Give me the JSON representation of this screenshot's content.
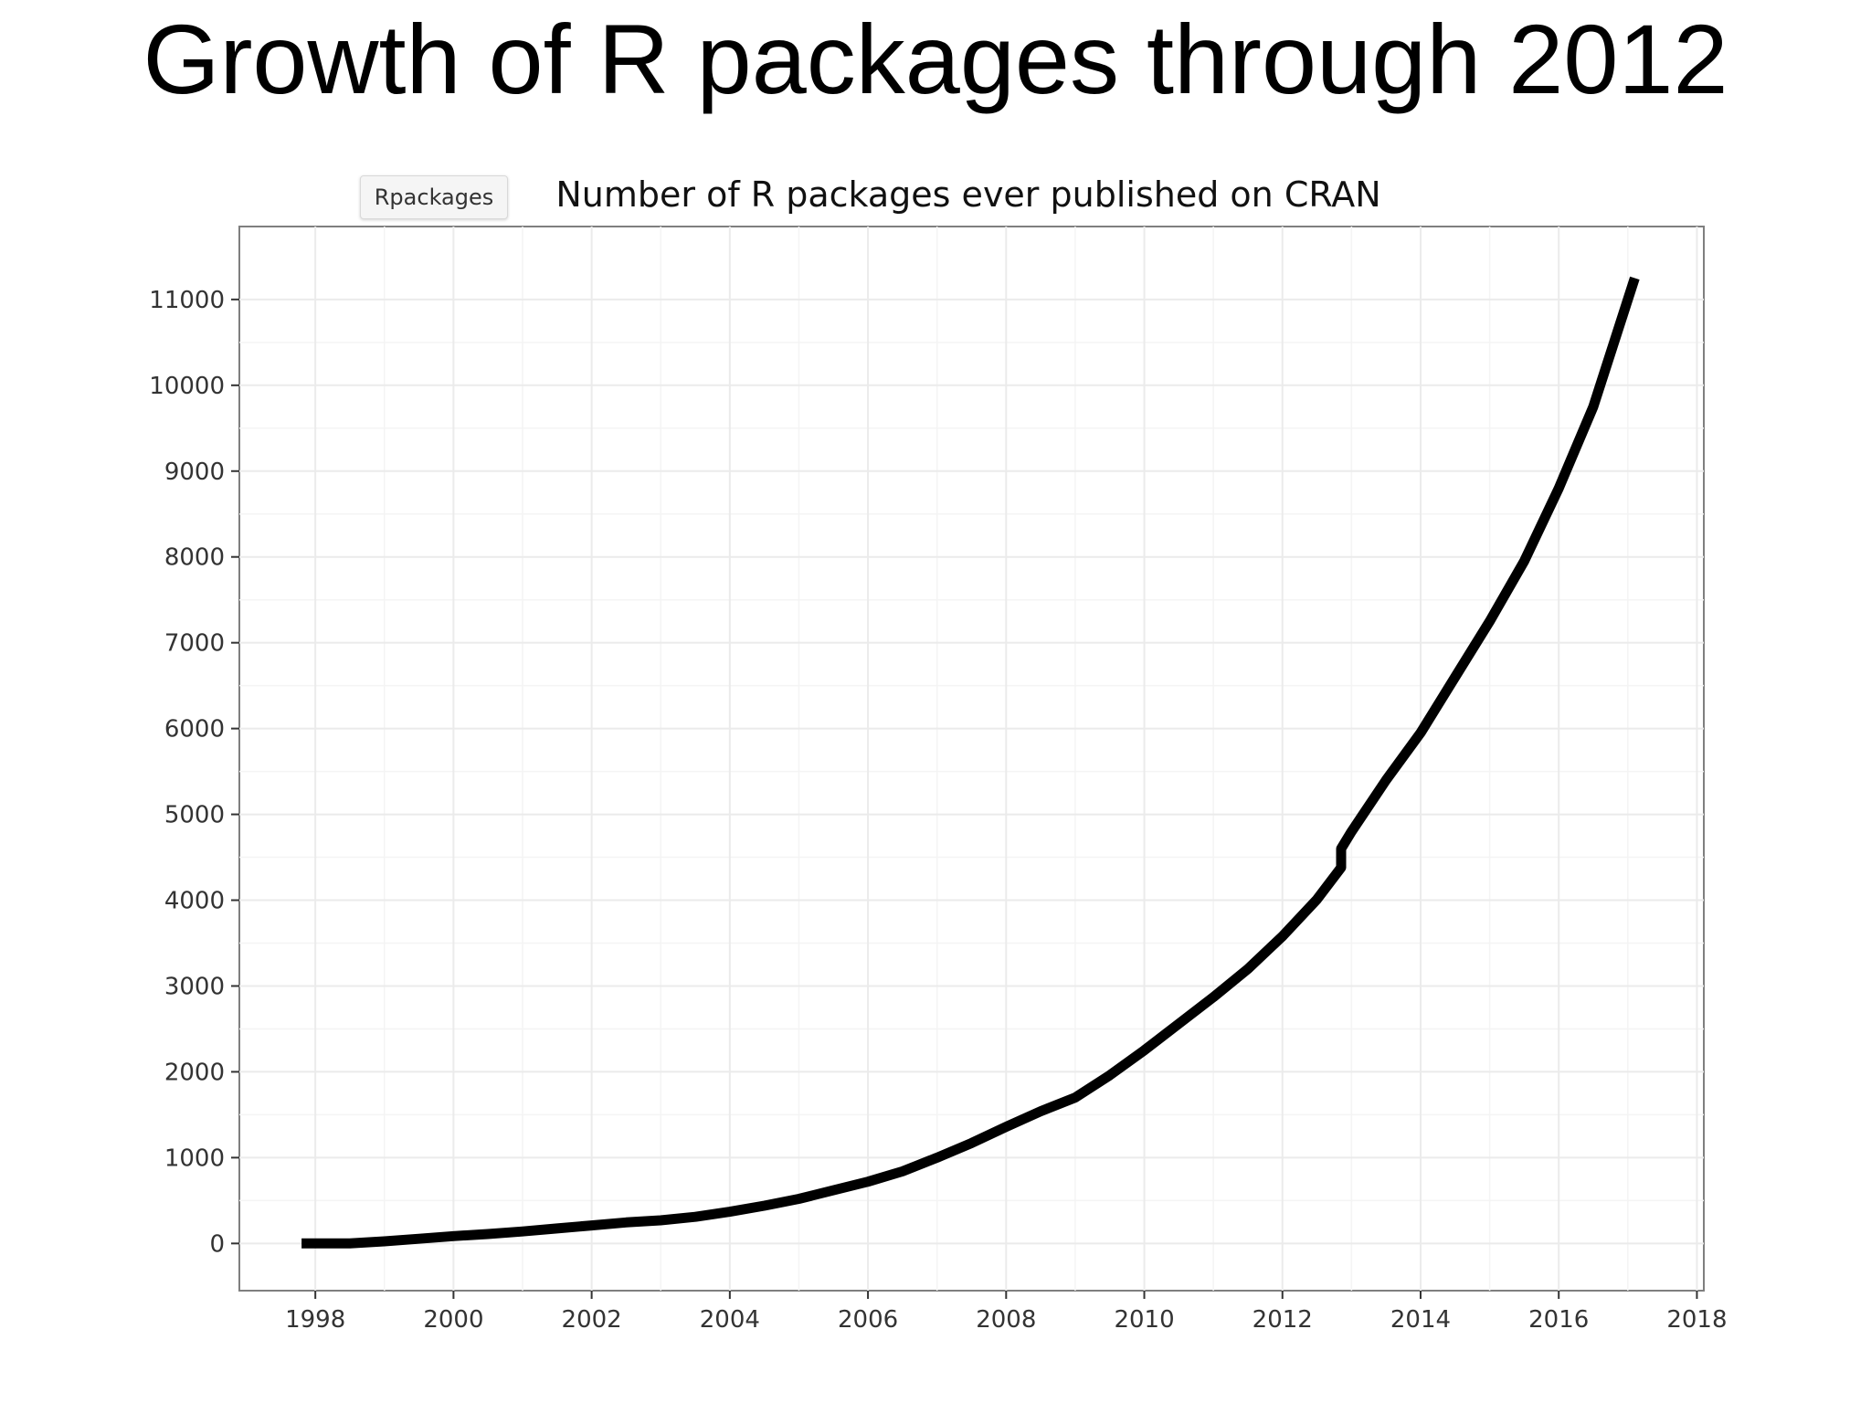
{
  "slide": {
    "title": "Growth of R packages through 2012"
  },
  "tag_button": {
    "label": "Rpackages"
  },
  "colors": {
    "line": "#000000",
    "grid": "#ebebeb",
    "panel_border": "#7f7f7f",
    "text": "#333333"
  },
  "chart_data": {
    "type": "line",
    "title": "Number of R packages ever published on CRAN",
    "xlabel": "",
    "ylabel": "",
    "xlim": [
      1996.9,
      2018.1
    ],
    "ylim": [
      -550,
      11850
    ],
    "x_ticks": [
      1998,
      2000,
      2002,
      2004,
      2006,
      2008,
      2010,
      2012,
      2014,
      2016,
      2018
    ],
    "y_ticks": [
      0,
      1000,
      2000,
      3000,
      4000,
      5000,
      6000,
      7000,
      8000,
      9000,
      10000,
      11000
    ],
    "grid": true,
    "legend": "none",
    "series": [
      {
        "x": [
          1997.8,
          1998.5,
          1999.0,
          1999.5,
          2000.0,
          2000.5,
          2001.0,
          2001.5,
          2002.0,
          2002.5,
          2003.0,
          2003.5,
          2004.0,
          2004.5,
          2005.0,
          2005.5,
          2006.0,
          2006.5,
          2007.0,
          2007.5,
          2008.0,
          2008.5,
          2009.0,
          2009.5,
          2010.0,
          2010.5,
          2011.0,
          2011.5,
          2012.0,
          2012.5,
          2012.85,
          2012.85,
          2013.0,
          2013.5,
          2014.0,
          2014.5,
          2015.0,
          2015.5,
          2016.0,
          2016.5,
          2017.1
        ],
        "y": [
          0,
          0,
          25,
          55,
          85,
          110,
          140,
          175,
          210,
          245,
          270,
          310,
          370,
          440,
          520,
          620,
          720,
          840,
          1000,
          1170,
          1360,
          1540,
          1700,
          1960,
          2250,
          2560,
          2870,
          3200,
          3580,
          4010,
          4380,
          4600,
          4800,
          5400,
          5950,
          6600,
          7250,
          7950,
          8800,
          9750,
          11250
        ]
      }
    ]
  }
}
